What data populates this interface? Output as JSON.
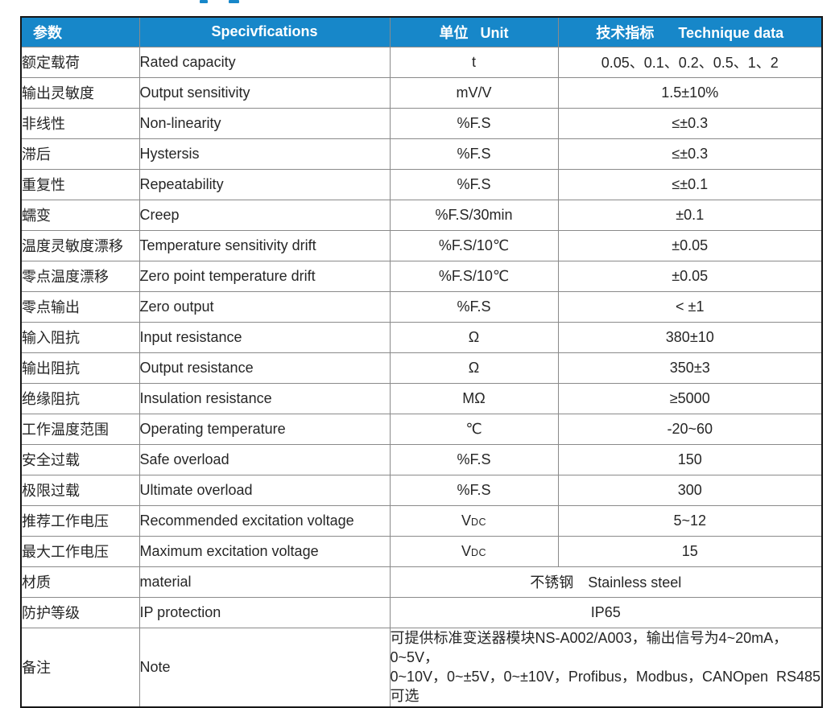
{
  "page": {
    "background": "#ffffff",
    "accent_blue": "#1787c9",
    "outer_border": "#161616",
    "grid_gray": "#8a8a8a",
    "text_color": "#262626"
  },
  "table": {
    "headers": {
      "param": "参数",
      "spec": "Specivfications",
      "unit": "单位   Unit",
      "data": "技术指标      Technique data"
    },
    "rows": [
      {
        "cn": "额定载荷",
        "en": "Rated capacity",
        "unit": "t",
        "value": "0.05、0.1、0.2、0.5、1、2"
      },
      {
        "cn": "输出灵敏度",
        "en": "Output sensitivity",
        "unit": "mV/V",
        "value": "1.5±10%"
      },
      {
        "cn": "非线性",
        "en": "Non-linearity",
        "unit": "%F.S",
        "value": "≤±0.3"
      },
      {
        "cn": "滞后",
        "en": "Hystersis",
        "unit": "%F.S",
        "value": "≤±0.3"
      },
      {
        "cn": "重复性",
        "en": "Repeatability",
        "unit": "%F.S",
        "value": "≤±0.1"
      },
      {
        "cn": "蠕变",
        "en": "Creep",
        "unit": "%F.S/30min",
        "value": "±0.1"
      },
      {
        "cn": "温度灵敏度漂移",
        "en": "Temperature sensitivity drift",
        "unit": "%F.S/10℃",
        "value": "±0.05"
      },
      {
        "cn": "零点温度漂移",
        "en": "Zero point temperature drift",
        "unit": "%F.S/10℃",
        "value": "±0.05"
      },
      {
        "cn": "零点输出",
        "en": "Zero output",
        "unit": "%F.S",
        "value": "< ±1"
      },
      {
        "cn": "输入阻抗",
        "en": "Input resistance",
        "unit": "Ω",
        "value": "380±10"
      },
      {
        "cn": "输出阻抗",
        "en": "Output resistance",
        "unit": "Ω",
        "value": "350±3"
      },
      {
        "cn": "绝缘阻抗",
        "en": "Insulation resistance",
        "unit": "MΩ",
        "value": "≥5000"
      },
      {
        "cn": "工作温度范围",
        "en": "Operating temperature",
        "unit": "℃",
        "value": "-20~60"
      },
      {
        "cn": "安全过载",
        "en": "Safe overload",
        "unit": "%F.S",
        "value": "150"
      },
      {
        "cn": "极限过载",
        "en": "Ultimate overload",
        "unit": "%F.S",
        "value": "300"
      },
      {
        "cn": "推荐工作电压",
        "en": "Recommended excitation voltage",
        "unit": "VDC",
        "unit_base": "V",
        "unit_sub": "DC",
        "value": "5~12"
      },
      {
        "cn": "最大工作电压",
        "en": "Maximum excitation voltage",
        "unit": "VDC",
        "unit_base": "V",
        "unit_sub": "DC",
        "value": "15"
      },
      {
        "cn": "材质",
        "en": "material",
        "merged": "不锈钢　Stainless steel"
      },
      {
        "cn": "防护等级",
        "en": "IP protection",
        "merged": "IP65"
      },
      {
        "cn": "备注",
        "en": "Note",
        "note_lines": [
          "可提供标准变送器模块NS-A002/A003，输出信号为4~20mA，0~5V，",
          "0~10V，0~±5V，0~±10V，Profibus，Modbus，CANOpen  RS485可选"
        ]
      }
    ]
  }
}
